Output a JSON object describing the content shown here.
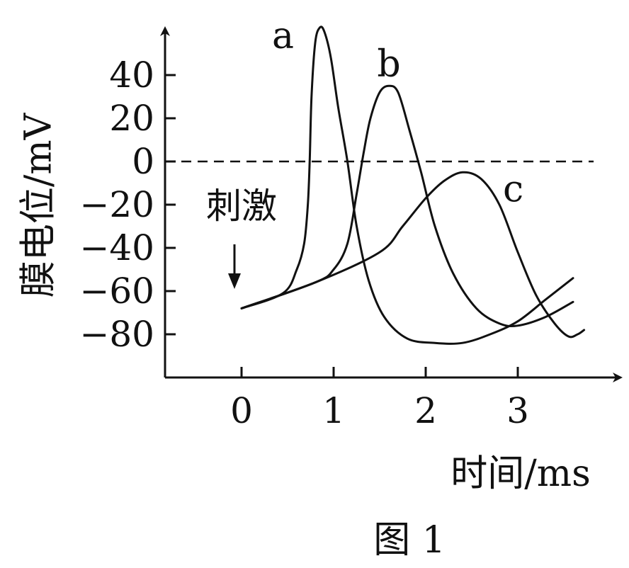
{
  "chart_data": {
    "type": "line",
    "xlabel": "时间/ms",
    "ylabel": "膜电位/mV",
    "caption": "图 1",
    "xlim": [
      -0.8,
      4.1
    ],
    "ylim": [
      -100,
      65
    ],
    "x_ticks": [
      "0",
      "1",
      "2",
      "3"
    ],
    "y_ticks": [
      "40",
      "20",
      "0",
      "−20",
      "−40",
      "−60",
      "−80"
    ],
    "y_tick_values": [
      40,
      20,
      0,
      -20,
      -40,
      -60,
      -80
    ],
    "x_tick_values": [
      0,
      1,
      2,
      3
    ],
    "reference_line": {
      "y": 0,
      "style": "dashed"
    },
    "annotation": {
      "text": "刺激",
      "x": 0
    },
    "series": [
      {
        "name": "a",
        "points": [
          [
            0,
            -68
          ],
          [
            0.45,
            -61
          ],
          [
            0.6,
            -50
          ],
          [
            0.68,
            -38
          ],
          [
            0.72,
            -20
          ],
          [
            0.74,
            0
          ],
          [
            0.76,
            30
          ],
          [
            0.8,
            55
          ],
          [
            0.85,
            62
          ],
          [
            0.9,
            60
          ],
          [
            0.97,
            48
          ],
          [
            1.05,
            25
          ],
          [
            1.15,
            0
          ],
          [
            1.25,
            -30
          ],
          [
            1.38,
            -55
          ],
          [
            1.55,
            -72
          ],
          [
            1.8,
            -82
          ],
          [
            2.1,
            -84
          ],
          [
            2.4,
            -84
          ],
          [
            2.7,
            -80
          ],
          [
            3.0,
            -74
          ],
          [
            3.3,
            -64
          ],
          [
            3.6,
            -54
          ]
        ]
      },
      {
        "name": "b",
        "points": [
          [
            0,
            -68
          ],
          [
            0.8,
            -56
          ],
          [
            1.0,
            -50
          ],
          [
            1.15,
            -38
          ],
          [
            1.25,
            -15
          ],
          [
            1.33,
            5
          ],
          [
            1.4,
            20
          ],
          [
            1.5,
            32
          ],
          [
            1.6,
            35
          ],
          [
            1.7,
            32
          ],
          [
            1.82,
            15
          ],
          [
            1.95,
            -5
          ],
          [
            2.1,
            -30
          ],
          [
            2.3,
            -52
          ],
          [
            2.55,
            -68
          ],
          [
            2.8,
            -75
          ],
          [
            3.0,
            -76
          ],
          [
            3.3,
            -72
          ],
          [
            3.6,
            -65
          ]
        ]
      },
      {
        "name": "c",
        "points": [
          [
            0,
            -68
          ],
          [
            0.8,
            -56
          ],
          [
            1.5,
            -42
          ],
          [
            1.75,
            -30
          ],
          [
            2.0,
            -17
          ],
          [
            2.2,
            -9
          ],
          [
            2.4,
            -5
          ],
          [
            2.6,
            -8
          ],
          [
            2.8,
            -20
          ],
          [
            3.0,
            -42
          ],
          [
            3.2,
            -62
          ],
          [
            3.4,
            -75
          ],
          [
            3.55,
            -81
          ],
          [
            3.65,
            -80
          ],
          [
            3.72,
            -78
          ]
        ]
      }
    ],
    "series_labels": [
      {
        "name": "a",
        "x": 0.45,
        "y": 58
      },
      {
        "name": "b",
        "x": 1.6,
        "y": 45
      },
      {
        "name": "c",
        "x": 2.95,
        "y": -13
      }
    ]
  }
}
